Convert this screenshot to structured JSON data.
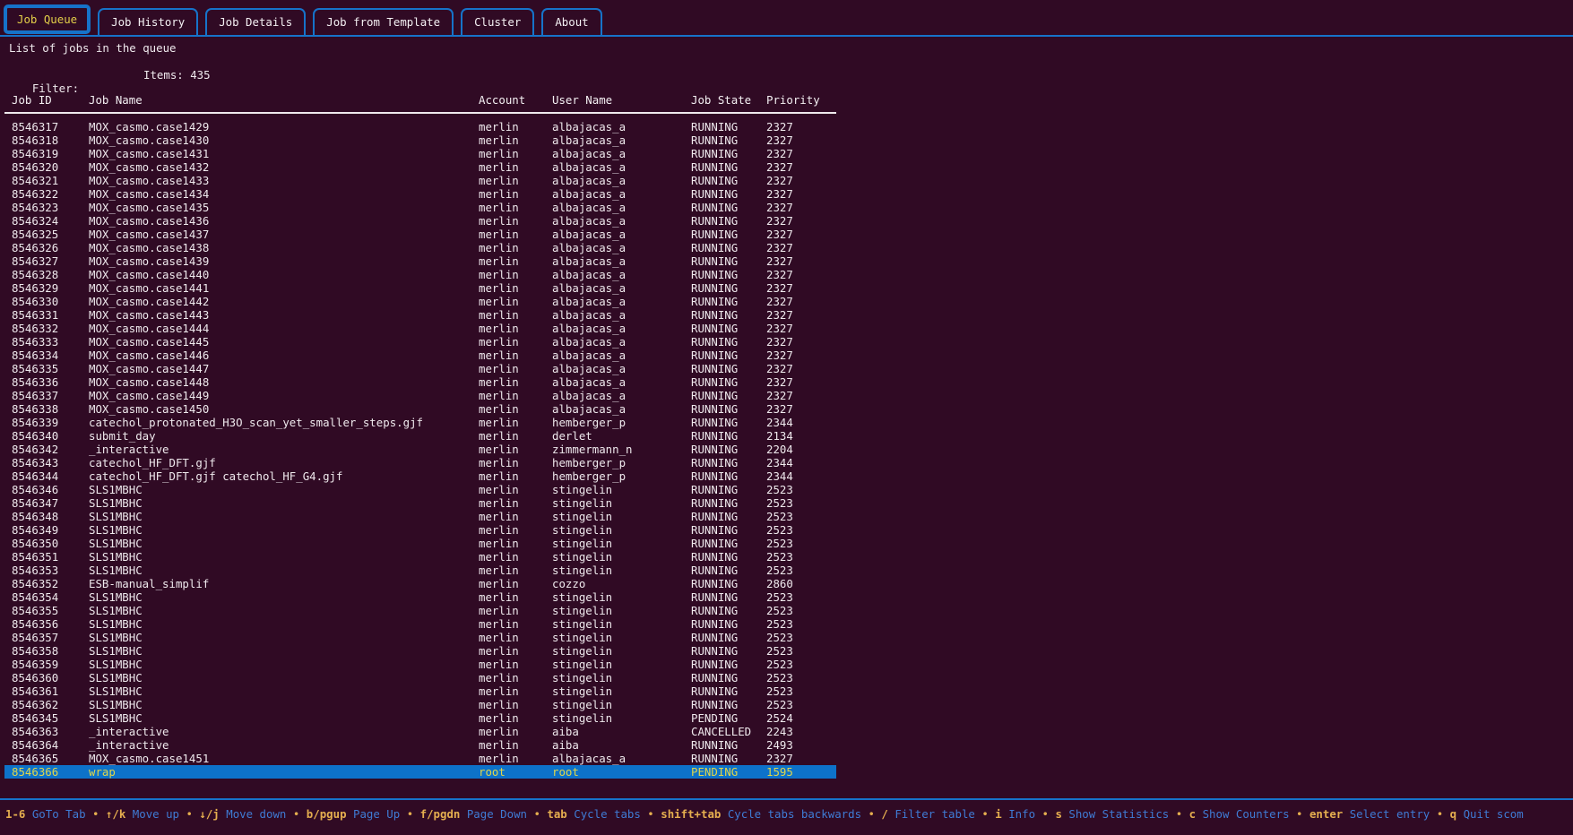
{
  "tabs": [
    {
      "label": "Job Queue",
      "active": true
    },
    {
      "label": "Job History",
      "active": false
    },
    {
      "label": "Job Details",
      "active": false
    },
    {
      "label": "Job from Template",
      "active": false
    },
    {
      "label": "Cluster",
      "active": false
    },
    {
      "label": "About",
      "active": false
    }
  ],
  "subtitle": "List of jobs in the queue",
  "filter": {
    "label": "Filter:",
    "items": "Items: 435"
  },
  "table": {
    "columns": [
      "Job ID",
      "Job Name",
      "Account",
      "User Name",
      "Job State",
      "Priority"
    ],
    "selected_job_id": "8546366",
    "rows": [
      [
        "8546317",
        "MOX_casmo.case1429",
        "merlin",
        "albajacas_a",
        "RUNNING",
        "2327"
      ],
      [
        "8546318",
        "MOX_casmo.case1430",
        "merlin",
        "albajacas_a",
        "RUNNING",
        "2327"
      ],
      [
        "8546319",
        "MOX_casmo.case1431",
        "merlin",
        "albajacas_a",
        "RUNNING",
        "2327"
      ],
      [
        "8546320",
        "MOX_casmo.case1432",
        "merlin",
        "albajacas_a",
        "RUNNING",
        "2327"
      ],
      [
        "8546321",
        "MOX_casmo.case1433",
        "merlin",
        "albajacas_a",
        "RUNNING",
        "2327"
      ],
      [
        "8546322",
        "MOX_casmo.case1434",
        "merlin",
        "albajacas_a",
        "RUNNING",
        "2327"
      ],
      [
        "8546323",
        "MOX_casmo.case1435",
        "merlin",
        "albajacas_a",
        "RUNNING",
        "2327"
      ],
      [
        "8546324",
        "MOX_casmo.case1436",
        "merlin",
        "albajacas_a",
        "RUNNING",
        "2327"
      ],
      [
        "8546325",
        "MOX_casmo.case1437",
        "merlin",
        "albajacas_a",
        "RUNNING",
        "2327"
      ],
      [
        "8546326",
        "MOX_casmo.case1438",
        "merlin",
        "albajacas_a",
        "RUNNING",
        "2327"
      ],
      [
        "8546327",
        "MOX_casmo.case1439",
        "merlin",
        "albajacas_a",
        "RUNNING",
        "2327"
      ],
      [
        "8546328",
        "MOX_casmo.case1440",
        "merlin",
        "albajacas_a",
        "RUNNING",
        "2327"
      ],
      [
        "8546329",
        "MOX_casmo.case1441",
        "merlin",
        "albajacas_a",
        "RUNNING",
        "2327"
      ],
      [
        "8546330",
        "MOX_casmo.case1442",
        "merlin",
        "albajacas_a",
        "RUNNING",
        "2327"
      ],
      [
        "8546331",
        "MOX_casmo.case1443",
        "merlin",
        "albajacas_a",
        "RUNNING",
        "2327"
      ],
      [
        "8546332",
        "MOX_casmo.case1444",
        "merlin",
        "albajacas_a",
        "RUNNING",
        "2327"
      ],
      [
        "8546333",
        "MOX_casmo.case1445",
        "merlin",
        "albajacas_a",
        "RUNNING",
        "2327"
      ],
      [
        "8546334",
        "MOX_casmo.case1446",
        "merlin",
        "albajacas_a",
        "RUNNING",
        "2327"
      ],
      [
        "8546335",
        "MOX_casmo.case1447",
        "merlin",
        "albajacas_a",
        "RUNNING",
        "2327"
      ],
      [
        "8546336",
        "MOX_casmo.case1448",
        "merlin",
        "albajacas_a",
        "RUNNING",
        "2327"
      ],
      [
        "8546337",
        "MOX_casmo.case1449",
        "merlin",
        "albajacas_a",
        "RUNNING",
        "2327"
      ],
      [
        "8546338",
        "MOX_casmo.case1450",
        "merlin",
        "albajacas_a",
        "RUNNING",
        "2327"
      ],
      [
        "8546339",
        "catechol_protonated_H3O_scan_yet_smaller_steps.gjf",
        "merlin",
        "hemberger_p",
        "RUNNING",
        "2344"
      ],
      [
        "8546340",
        "submit_day",
        "merlin",
        "derlet",
        "RUNNING",
        "2134"
      ],
      [
        "8546342",
        "_interactive",
        "merlin",
        "zimmermann_n",
        "RUNNING",
        "2204"
      ],
      [
        "8546343",
        "catechol_HF_DFT.gjf",
        "merlin",
        "hemberger_p",
        "RUNNING",
        "2344"
      ],
      [
        "8546344",
        "catechol_HF_DFT.gjf catechol_HF_G4.gjf",
        "merlin",
        "hemberger_p",
        "RUNNING",
        "2344"
      ],
      [
        "8546346",
        "SLS1MBHC",
        "merlin",
        "stingelin",
        "RUNNING",
        "2523"
      ],
      [
        "8546347",
        "SLS1MBHC",
        "merlin",
        "stingelin",
        "RUNNING",
        "2523"
      ],
      [
        "8546348",
        "SLS1MBHC",
        "merlin",
        "stingelin",
        "RUNNING",
        "2523"
      ],
      [
        "8546349",
        "SLS1MBHC",
        "merlin",
        "stingelin",
        "RUNNING",
        "2523"
      ],
      [
        "8546350",
        "SLS1MBHC",
        "merlin",
        "stingelin",
        "RUNNING",
        "2523"
      ],
      [
        "8546351",
        "SLS1MBHC",
        "merlin",
        "stingelin",
        "RUNNING",
        "2523"
      ],
      [
        "8546353",
        "SLS1MBHC",
        "merlin",
        "stingelin",
        "RUNNING",
        "2523"
      ],
      [
        "8546352",
        "ESB-manual_simplif",
        "merlin",
        "cozzo",
        "RUNNING",
        "2860"
      ],
      [
        "8546354",
        "SLS1MBHC",
        "merlin",
        "stingelin",
        "RUNNING",
        "2523"
      ],
      [
        "8546355",
        "SLS1MBHC",
        "merlin",
        "stingelin",
        "RUNNING",
        "2523"
      ],
      [
        "8546356",
        "SLS1MBHC",
        "merlin",
        "stingelin",
        "RUNNING",
        "2523"
      ],
      [
        "8546357",
        "SLS1MBHC",
        "merlin",
        "stingelin",
        "RUNNING",
        "2523"
      ],
      [
        "8546358",
        "SLS1MBHC",
        "merlin",
        "stingelin",
        "RUNNING",
        "2523"
      ],
      [
        "8546359",
        "SLS1MBHC",
        "merlin",
        "stingelin",
        "RUNNING",
        "2523"
      ],
      [
        "8546360",
        "SLS1MBHC",
        "merlin",
        "stingelin",
        "RUNNING",
        "2523"
      ],
      [
        "8546361",
        "SLS1MBHC",
        "merlin",
        "stingelin",
        "RUNNING",
        "2523"
      ],
      [
        "8546362",
        "SLS1MBHC",
        "merlin",
        "stingelin",
        "RUNNING",
        "2523"
      ],
      [
        "8546345",
        "SLS1MBHC",
        "merlin",
        "stingelin",
        "PENDING",
        "2524"
      ],
      [
        "8546363",
        "_interactive",
        "merlin",
        "aiba",
        "CANCELLED",
        "2243"
      ],
      [
        "8546364",
        "_interactive",
        "merlin",
        "aiba",
        "RUNNING",
        "2493"
      ],
      [
        "8546365",
        "MOX_casmo.case1451",
        "merlin",
        "albajacas_a",
        "RUNNING",
        "2327"
      ],
      [
        "8546366",
        "wrap",
        "root",
        "root",
        "PENDING",
        "1595"
      ]
    ]
  },
  "statusbar": {
    "separator": "•",
    "shortcuts": [
      {
        "key": "1-6",
        "desc": "GoTo Tab"
      },
      {
        "key": "↑/k",
        "desc": "Move up"
      },
      {
        "key": "↓/j",
        "desc": "Move down"
      },
      {
        "key": "b/pgup",
        "desc": "Page Up"
      },
      {
        "key": "f/pgdn",
        "desc": "Page Down"
      },
      {
        "key": "tab",
        "desc": "Cycle tabs"
      },
      {
        "key": "shift+tab",
        "desc": "Cycle tabs backwards"
      },
      {
        "key": "/",
        "desc": "Filter table"
      },
      {
        "key": "i",
        "desc": "Info"
      },
      {
        "key": "s",
        "desc": "Show Statistics"
      },
      {
        "key": "c",
        "desc": "Show Counters"
      },
      {
        "key": "enter",
        "desc": "Select entry"
      },
      {
        "key": "q",
        "desc": "Quit scom"
      }
    ]
  },
  "colors": {
    "background": "#300a24",
    "accent_blue": "#1673c9",
    "selection_background": "#0d72c9",
    "selection_text": "#e0d74b",
    "active_tab_text": "#e3cf49",
    "shortcut_key": "#e5ae4f",
    "shortcut_desc": "#3f7bd4",
    "text": "#efe9ed"
  }
}
